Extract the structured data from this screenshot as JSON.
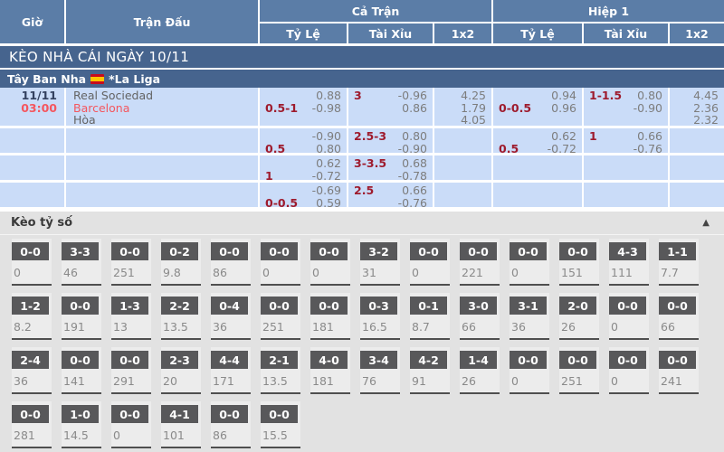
{
  "header": {
    "gio": "Giờ",
    "tran_dau": "Trận Đấu",
    "ca_tran": "Cả Trận",
    "hiep_1": "Hiệp 1",
    "ty_le": "Tỷ Lệ",
    "tai_xiu": "Tài Xỉu",
    "one_x_two": "1x2"
  },
  "section_bar": {
    "title": "KÈO NHÀ CÁI NGÀY 10/11"
  },
  "league_bar": {
    "country": "Tây Ban Nha",
    "flag_icon": "spain-flag",
    "league": "*La Liga"
  },
  "table": {
    "match": {
      "date": "11/11",
      "time": "03:00",
      "home": "Real Sociedad",
      "away": "Barcelona",
      "draw_label": "Hòa"
    },
    "odds_rows": [
      {
        "ft_hdp": {
          "hdp": "0.5-1",
          "hdp_line": 2,
          "line1": "0.88",
          "line2": "-0.98"
        },
        "ft_ou": {
          "hdp": "3",
          "hdp_line": 1,
          "line1": "-0.96",
          "line2": "0.86"
        },
        "ft_1x2": [
          "4.25",
          "1.79",
          "4.05"
        ],
        "h1_hdp": {
          "hdp": "0-0.5",
          "hdp_line": 2,
          "line1": "0.94",
          "line2": "0.96"
        },
        "h1_ou": {
          "hdp": "1-1.5",
          "hdp_line": 1,
          "line1": "0.80",
          "line2": "-0.90"
        },
        "h1_1x2": [
          "4.45",
          "2.36",
          "2.32"
        ]
      },
      {
        "ft_hdp": {
          "hdp": "0.5",
          "hdp_line": 2,
          "line1": "-0.90",
          "line2": "0.80"
        },
        "ft_ou": {
          "hdp": "2.5-3",
          "hdp_line": 1,
          "line1": "0.80",
          "line2": "-0.90"
        },
        "ft_1x2": [],
        "h1_hdp": {
          "hdp": "0.5",
          "hdp_line": 2,
          "line1": "0.62",
          "line2": "-0.72"
        },
        "h1_ou": {
          "hdp": "1",
          "hdp_line": 1,
          "line1": "0.66",
          "line2": "-0.76"
        },
        "h1_1x2": []
      },
      {
        "ft_hdp": {
          "hdp": "1",
          "hdp_line": 2,
          "line1": "0.62",
          "line2": "-0.72"
        },
        "ft_ou": {
          "hdp": "3-3.5",
          "hdp_line": 1,
          "line1": "0.68",
          "line2": "-0.78"
        },
        "ft_1x2": [],
        "h1_hdp": null,
        "h1_ou": null,
        "h1_1x2": []
      },
      {
        "ft_hdp": {
          "hdp": "0-0.5",
          "hdp_line": 2,
          "line1": "-0.69",
          "line2": "0.59"
        },
        "ft_ou": {
          "hdp": "2.5",
          "hdp_line": 1,
          "line1": "0.66",
          "line2": "-0.76"
        },
        "ft_1x2": [],
        "h1_hdp": null,
        "h1_ou": null,
        "h1_1x2": []
      }
    ]
  },
  "score_section": {
    "title": "Kèo tỷ số",
    "collapse_icon": "chevron-up",
    "rows": [
      [
        {
          "score": "0-0",
          "value": "0"
        },
        {
          "score": "3-3",
          "value": "46"
        },
        {
          "score": "0-0",
          "value": "251"
        },
        {
          "score": "0-2",
          "value": "9.8"
        },
        {
          "score": "0-0",
          "value": "86"
        },
        {
          "score": "0-0",
          "value": "0"
        },
        {
          "score": "0-0",
          "value": "0"
        },
        {
          "score": "3-2",
          "value": "31"
        },
        {
          "score": "0-0",
          "value": "0"
        },
        {
          "score": "0-0",
          "value": "221"
        },
        {
          "score": "0-0",
          "value": "0"
        },
        {
          "score": "0-0",
          "value": "151"
        },
        {
          "score": "4-3",
          "value": "111"
        },
        {
          "score": "1-1",
          "value": "7.7"
        }
      ],
      [
        {
          "score": "1-2",
          "value": "8.2"
        },
        {
          "score": "0-0",
          "value": "191"
        },
        {
          "score": "1-3",
          "value": "13"
        },
        {
          "score": "2-2",
          "value": "13.5"
        },
        {
          "score": "0-4",
          "value": "36"
        },
        {
          "score": "0-0",
          "value": "251"
        },
        {
          "score": "0-0",
          "value": "181"
        },
        {
          "score": "0-3",
          "value": "16.5"
        },
        {
          "score": "0-1",
          "value": "8.7"
        },
        {
          "score": "3-0",
          "value": "66"
        },
        {
          "score": "3-1",
          "value": "36"
        },
        {
          "score": "2-0",
          "value": "26"
        },
        {
          "score": "0-0",
          "value": "0"
        },
        {
          "score": "0-0",
          "value": "66"
        }
      ],
      [
        {
          "score": "2-4",
          "value": "36"
        },
        {
          "score": "0-0",
          "value": "141"
        },
        {
          "score": "0-0",
          "value": "291"
        },
        {
          "score": "2-3",
          "value": "20"
        },
        {
          "score": "4-4",
          "value": "171"
        },
        {
          "score": "2-1",
          "value": "13.5"
        },
        {
          "score": "4-0",
          "value": "181"
        },
        {
          "score": "3-4",
          "value": "76"
        },
        {
          "score": "4-2",
          "value": "91"
        },
        {
          "score": "1-4",
          "value": "26"
        },
        {
          "score": "0-0",
          "value": "0"
        },
        {
          "score": "0-0",
          "value": "251"
        },
        {
          "score": "0-0",
          "value": "0"
        },
        {
          "score": "0-0",
          "value": "241"
        }
      ],
      [
        {
          "score": "0-0",
          "value": "281"
        },
        {
          "score": "1-0",
          "value": "14.5"
        },
        {
          "score": "0-0",
          "value": "0"
        },
        {
          "score": "4-1",
          "value": "101"
        },
        {
          "score": "0-0",
          "value": "86"
        },
        {
          "score": "0-0",
          "value": "15.5"
        }
      ]
    ]
  },
  "colors": {
    "header_blue": "#5b7da7",
    "bar_blue": "#46648e",
    "cell_blue": "#cadcf8",
    "handicap_maroon": "#9e1b2d",
    "accent_red": "#f4565e",
    "odds_gray": "#7d7d7d",
    "score_box_gray": "#58585a",
    "flag_red": "#c60b1e",
    "flag_yellow": "#ffc400"
  }
}
